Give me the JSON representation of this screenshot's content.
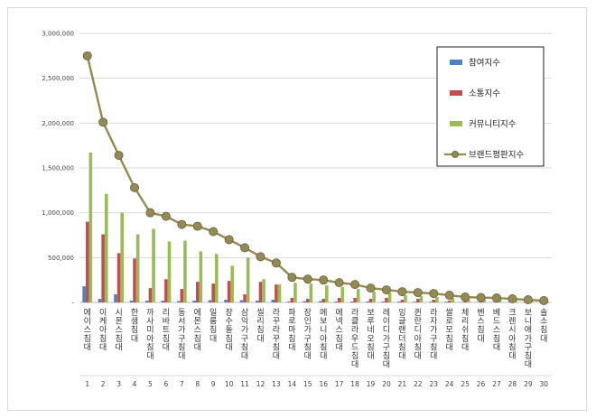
{
  "chart_data": {
    "type": "bar",
    "title": "",
    "xlabel": "",
    "ylabel": "",
    "ylim": [
      0,
      3000000
    ],
    "yticks": [
      "-",
      "500,000",
      "1,000,000",
      "1,500,000",
      "2,000,000",
      "2,500,000",
      "3,000,000"
    ],
    "grid": true,
    "legend_position": "top-right",
    "categories": [
      "에이스침대",
      "이케아침대",
      "시몬스침대",
      "한샘침대",
      "까사미아침대",
      "리바트침대",
      "동서가구침대",
      "에몬스침대",
      "일룸침대",
      "장수돌침대",
      "삼익가구침대",
      "씰리침대",
      "라꾸라꾸침대",
      "파로마침대",
      "장인가구침대",
      "에보니아침대",
      "에넥스침대",
      "라클라우드침대",
      "보루네오침대",
      "레이디가구침대",
      "잉글랜더침대",
      "퀸란디아침대",
      "라자가구침대",
      "쌀로모침대",
      "체리쉬침대",
      "벤스침대",
      "베드스침대",
      "크렌시아침대",
      "보니애가구침대",
      "솔소침대"
    ],
    "ranks": [
      "1",
      "2",
      "3",
      "4",
      "5",
      "6",
      "7",
      "8",
      "9",
      "10",
      "11",
      "12",
      "13",
      "14",
      "15",
      "16",
      "17",
      "18",
      "19",
      "20",
      "21",
      "22",
      "23",
      "24",
      "25",
      "26",
      "27",
      "28",
      "29",
      "30"
    ],
    "series": [
      {
        "name": "참여지수",
        "kind": "bar",
        "color": "#4f81bd",
        "values": [
          180000,
          40000,
          90000,
          20000,
          20000,
          20000,
          15000,
          20000,
          25000,
          30000,
          25000,
          20000,
          30000,
          10000,
          15000,
          15000,
          10000,
          10000,
          10000,
          10000,
          10000,
          8000,
          8000,
          8000,
          5000,
          5000,
          5000,
          5000,
          4000,
          4000
        ]
      },
      {
        "name": "소통지수",
        "kind": "bar",
        "color": "#c0504d",
        "values": [
          900000,
          760000,
          550000,
          490000,
          160000,
          260000,
          150000,
          230000,
          210000,
          240000,
          90000,
          230000,
          200000,
          50000,
          40000,
          40000,
          50000,
          50000,
          40000,
          50000,
          30000,
          40000,
          30000,
          20000,
          20000,
          20000,
          20000,
          20000,
          15000,
          10000
        ]
      },
      {
        "name": "커뮤니티지수",
        "kind": "bar",
        "color": "#9bbb59",
        "values": [
          1670000,
          1210000,
          1000000,
          760000,
          820000,
          680000,
          690000,
          570000,
          540000,
          410000,
          500000,
          260000,
          200000,
          220000,
          210000,
          190000,
          170000,
          150000,
          120000,
          110000,
          80000,
          70000,
          60000,
          50000,
          40000,
          30000,
          30000,
          25000,
          20000,
          10000
        ]
      },
      {
        "name": "브랜드평판지수",
        "kind": "line",
        "color": "#948a54",
        "values": [
          2750000,
          2010000,
          1640000,
          1280000,
          1000000,
          960000,
          870000,
          850000,
          790000,
          700000,
          610000,
          510000,
          440000,
          280000,
          260000,
          250000,
          220000,
          200000,
          160000,
          140000,
          120000,
          110000,
          100000,
          80000,
          60000,
          55000,
          50000,
          40000,
          30000,
          20000
        ]
      }
    ]
  }
}
